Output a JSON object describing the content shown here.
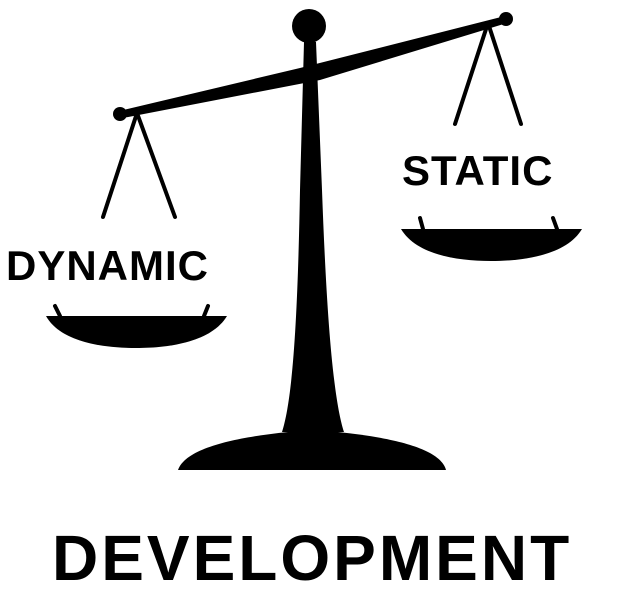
{
  "diagram": {
    "left_pan_label": "DYNAMIC",
    "right_pan_label": "STATIC",
    "caption": "DEVELOPMENT",
    "icon": "balance-scale-icon",
    "tilt": "left pan lower, right pan higher",
    "colors": {
      "ink": "#000000",
      "background": "#ffffff"
    }
  }
}
